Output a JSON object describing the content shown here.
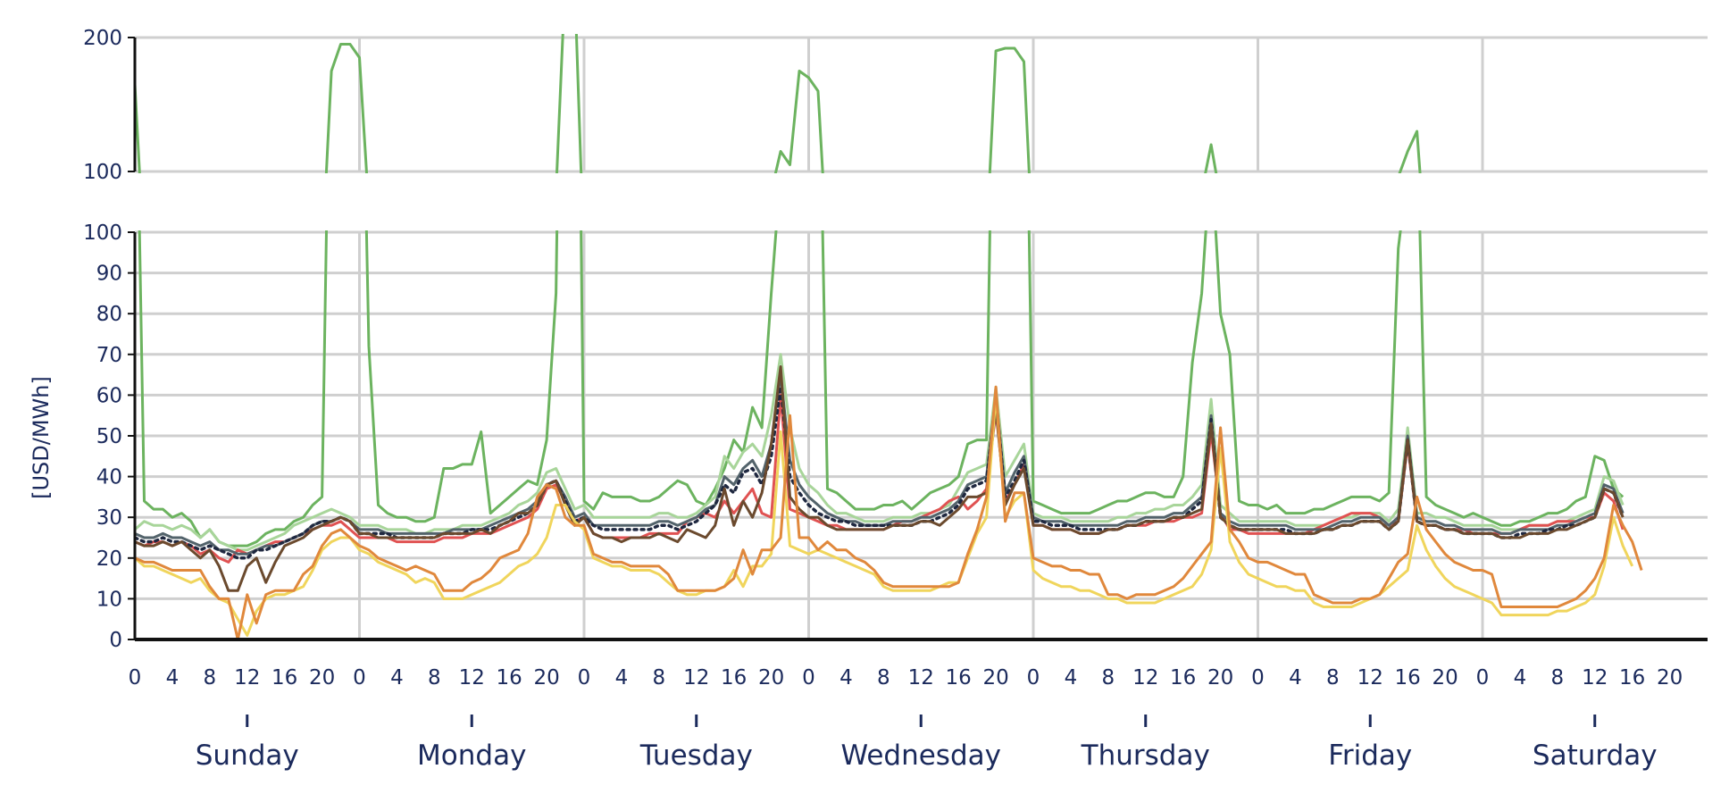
{
  "chart_data": {
    "type": "line",
    "ylabel": "[USD/MWh]",
    "broken_axis": true,
    "upper_panel": {
      "ylim": [
        100,
        200
      ],
      "ticks": [
        100,
        200
      ]
    },
    "lower_panel": {
      "ylim": [
        0,
        100
      ],
      "ticks": [
        0,
        10,
        20,
        30,
        40,
        50,
        60,
        70,
        80,
        90,
        100
      ]
    },
    "hour_ticks": [
      "0",
      "4",
      "8",
      "12",
      "16",
      "20"
    ],
    "days": [
      "Sunday",
      "Monday",
      "Tuesday",
      "Wednesday",
      "Thursday",
      "Friday",
      "Saturday"
    ],
    "grid": true,
    "x_unit": "hour of week (0-167)",
    "series": [
      {
        "color": "#6cb35f",
        "style": "solid",
        "values": [
          165,
          34,
          32,
          32,
          30,
          31,
          29,
          25,
          27,
          24,
          23,
          23,
          23,
          24,
          26,
          27,
          27,
          29,
          30,
          33,
          35,
          175,
          195,
          195,
          185,
          72,
          33,
          31,
          30,
          30,
          29,
          29,
          30,
          42,
          42,
          43,
          43,
          51,
          31,
          33,
          35,
          37,
          39,
          38,
          49,
          85,
          245,
          240,
          34,
          32,
          36,
          35,
          35,
          35,
          34,
          34,
          35,
          37,
          39,
          38,
          34,
          33,
          37,
          42,
          49,
          46,
          57,
          52,
          85,
          115,
          105,
          175,
          170,
          160,
          37,
          36,
          34,
          32,
          32,
          32,
          33,
          33,
          34,
          32,
          34,
          36,
          37,
          38,
          40,
          48,
          49,
          49,
          190,
          192,
          192,
          182,
          34,
          33,
          32,
          31,
          31,
          31,
          31,
          32,
          33,
          34,
          34,
          35,
          36,
          36,
          35,
          35,
          40,
          68,
          85,
          120,
          80,
          70,
          34,
          33,
          33,
          32,
          33,
          31,
          31,
          31,
          32,
          32,
          33,
          34,
          35,
          35,
          35,
          34,
          36,
          96,
          115,
          130,
          35,
          33,
          32,
          31,
          30,
          31,
          30,
          29,
          28,
          28,
          29,
          29,
          30,
          31,
          31,
          32,
          34,
          35,
          45,
          44,
          37,
          35
        ]
      },
      {
        "color": "#a8d59a",
        "style": "solid",
        "values": [
          27,
          29,
          28,
          28,
          27,
          28,
          27,
          25,
          27,
          24,
          23,
          22,
          22,
          23,
          24,
          25,
          26,
          28,
          29,
          30,
          31,
          32,
          31,
          30,
          28,
          28,
          28,
          27,
          27,
          27,
          26,
          26,
          27,
          27,
          27,
          28,
          28,
          28,
          29,
          30,
          31,
          33,
          34,
          36,
          41,
          42,
          37,
          32,
          33,
          30,
          30,
          30,
          30,
          30,
          30,
          30,
          31,
          31,
          30,
          30,
          31,
          33,
          35,
          45,
          42,
          46,
          48,
          45,
          55,
          70,
          52,
          42,
          38,
          36,
          33,
          31,
          31,
          30,
          29,
          29,
          29,
          30,
          30,
          30,
          31,
          31,
          32,
          33,
          37,
          41,
          42,
          43,
          62,
          40,
          44,
          48,
          31,
          30,
          30,
          30,
          29,
          29,
          29,
          29,
          29,
          30,
          30,
          31,
          31,
          32,
          32,
          33,
          33,
          35,
          38,
          59,
          33,
          31,
          29,
          29,
          29,
          29,
          29,
          29,
          28,
          28,
          28,
          28,
          29,
          30,
          30,
          31,
          31,
          31,
          29,
          32,
          52,
          31,
          31,
          30,
          30,
          29,
          28,
          28,
          28,
          28,
          27,
          27,
          27,
          28,
          28,
          28,
          29,
          29,
          30,
          31,
          32,
          40,
          39,
          33
        ]
      },
      {
        "color": "#e05252",
        "style": "solid",
        "values": [
          24,
          23,
          24,
          24,
          23,
          24,
          23,
          21,
          22,
          20,
          19,
          22,
          21,
          22,
          23,
          24,
          24,
          25,
          26,
          27,
          28,
          28,
          29,
          27,
          25,
          25,
          25,
          25,
          24,
          24,
          24,
          24,
          24,
          25,
          25,
          25,
          26,
          26,
          26,
          27,
          28,
          29,
          30,
          32,
          37,
          38,
          34,
          29,
          30,
          26,
          25,
          25,
          25,
          25,
          25,
          26,
          26,
          26,
          26,
          29,
          30,
          31,
          30,
          34,
          31,
          34,
          37,
          31,
          30,
          60,
          32,
          31,
          30,
          29,
          28,
          28,
          27,
          27,
          27,
          27,
          27,
          28,
          29,
          29,
          30,
          31,
          32,
          34,
          35,
          32,
          34,
          37,
          56,
          34,
          38,
          43,
          28,
          28,
          27,
          27,
          27,
          26,
          26,
          26,
          27,
          27,
          28,
          28,
          28,
          29,
          29,
          29,
          30,
          30,
          31,
          51,
          31,
          27,
          27,
          26,
          26,
          26,
          26,
          26,
          26,
          26,
          27,
          28,
          29,
          30,
          31,
          31,
          31,
          30,
          28,
          29,
          48,
          29,
          28,
          28,
          27,
          27,
          27,
          26,
          26,
          26,
          26,
          26,
          27,
          28,
          28,
          28,
          29,
          29,
          29,
          30,
          30,
          36,
          34,
          27
        ]
      },
      {
        "color": "#53636b",
        "style": "solid",
        "values": [
          26,
          25,
          25,
          26,
          25,
          25,
          24,
          23,
          24,
          22,
          22,
          21,
          21,
          22,
          23,
          23,
          24,
          25,
          26,
          28,
          29,
          29,
          30,
          29,
          27,
          27,
          27,
          26,
          26,
          26,
          26,
          26,
          26,
          26,
          27,
          27,
          27,
          27,
          28,
          29,
          30,
          31,
          32,
          34,
          38,
          39,
          35,
          30,
          31,
          28,
          28,
          28,
          28,
          28,
          28,
          28,
          29,
          29,
          28,
          29,
          30,
          32,
          33,
          40,
          38,
          42,
          44,
          40,
          48,
          65,
          44,
          38,
          35,
          33,
          31,
          30,
          29,
          29,
          28,
          28,
          28,
          29,
          29,
          29,
          30,
          30,
          31,
          32,
          34,
          38,
          39,
          40,
          60,
          36,
          41,
          45,
          30,
          29,
          29,
          29,
          28,
          28,
          28,
          28,
          28,
          28,
          29,
          29,
          30,
          30,
          30,
          31,
          31,
          33,
          35,
          55,
          31,
          29,
          28,
          28,
          28,
          28,
          28,
          28,
          27,
          27,
          27,
          27,
          28,
          29,
          29,
          30,
          30,
          30,
          28,
          30,
          50,
          30,
          29,
          29,
          28,
          28,
          27,
          27,
          27,
          27,
          26,
          26,
          27,
          27,
          27,
          27,
          28,
          28,
          29,
          30,
          31,
          38,
          37,
          31
        ]
      },
      {
        "color": "#1f2840",
        "style": "dotted",
        "values": [
          25,
          24,
          24,
          25,
          24,
          24,
          23,
          22,
          23,
          22,
          21,
          20,
          20,
          22,
          22,
          23,
          24,
          25,
          26,
          28,
          29,
          29,
          30,
          29,
          26,
          26,
          26,
          26,
          25,
          25,
          25,
          25,
          25,
          26,
          26,
          26,
          27,
          27,
          27,
          28,
          29,
          30,
          31,
          33,
          38,
          39,
          34,
          29,
          30,
          28,
          27,
          27,
          27,
          27,
          27,
          27,
          28,
          28,
          27,
          28,
          29,
          31,
          33,
          38,
          36,
          41,
          42,
          38,
          45,
          62,
          40,
          36,
          33,
          31,
          30,
          29,
          29,
          28,
          28,
          28,
          28,
          28,
          28,
          28,
          29,
          29,
          30,
          31,
          33,
          37,
          38,
          39,
          59,
          35,
          39,
          44,
          29,
          29,
          28,
          28,
          28,
          27,
          27,
          27,
          27,
          27,
          28,
          28,
          29,
          29,
          29,
          30,
          30,
          32,
          34,
          54,
          30,
          28,
          27,
          27,
          27,
          27,
          27,
          27,
          26,
          26,
          26,
          27,
          27,
          28,
          28,
          29,
          29,
          29,
          27,
          29,
          49,
          29,
          28,
          28,
          27,
          27,
          26,
          26,
          26,
          26,
          25,
          25,
          26,
          26,
          26,
          27,
          27,
          28,
          28,
          29,
          30,
          37,
          36,
          30
        ]
      },
      {
        "color": "#6b4a2e",
        "style": "solid",
        "values": [
          24,
          23,
          23,
          24,
          23,
          24,
          22,
          20,
          22,
          18,
          12,
          12,
          18,
          20,
          14,
          19,
          23,
          24,
          25,
          27,
          28,
          29,
          30,
          29,
          26,
          26,
          25,
          25,
          25,
          25,
          25,
          25,
          25,
          26,
          26,
          26,
          26,
          27,
          26,
          28,
          29,
          31,
          31,
          33,
          38,
          39,
          33,
          28,
          30,
          26,
          25,
          25,
          24,
          25,
          25,
          25,
          26,
          25,
          24,
          27,
          26,
          25,
          28,
          37,
          28,
          34,
          30,
          36,
          48,
          67,
          35,
          32,
          30,
          30,
          28,
          27,
          27,
          27,
          27,
          27,
          27,
          28,
          28,
          28,
          29,
          29,
          28,
          30,
          32,
          35,
          35,
          36,
          57,
          33,
          38,
          42,
          28,
          28,
          27,
          27,
          27,
          26,
          26,
          26,
          27,
          27,
          28,
          28,
          29,
          29,
          29,
          30,
          30,
          31,
          32,
          53,
          30,
          28,
          27,
          27,
          27,
          27,
          27,
          26,
          26,
          26,
          26,
          27,
          27,
          28,
          28,
          29,
          29,
          29,
          27,
          29,
          49,
          29,
          28,
          28,
          27,
          27,
          26,
          26,
          26,
          26,
          25,
          25,
          25,
          26,
          26,
          26,
          27,
          27,
          28,
          29,
          30,
          37,
          36,
          30
        ]
      },
      {
        "color": "#f0d55c",
        "style": "solid",
        "values": [
          20,
          18,
          18,
          17,
          16,
          15,
          14,
          15,
          12,
          10,
          9,
          5,
          1,
          7,
          10,
          11,
          11,
          12,
          13,
          17,
          22,
          24,
          25,
          25,
          22,
          21,
          19,
          18,
          17,
          16,
          14,
          15,
          14,
          10,
          10,
          10,
          11,
          12,
          13,
          14,
          16,
          18,
          19,
          21,
          25,
          33,
          33,
          29,
          27,
          20,
          19,
          18,
          18,
          17,
          17,
          17,
          16,
          14,
          12,
          11,
          11,
          12,
          12,
          13,
          17,
          13,
          18,
          18,
          21,
          51,
          23,
          22,
          21,
          22,
          21,
          20,
          19,
          18,
          17,
          16,
          13,
          12,
          12,
          12,
          12,
          12,
          13,
          14,
          14,
          20,
          26,
          30,
          60,
          30,
          34,
          36,
          17,
          15,
          14,
          13,
          13,
          12,
          12,
          11,
          10,
          10,
          9,
          9,
          9,
          9,
          10,
          11,
          12,
          13,
          16,
          22,
          47,
          24,
          19,
          16,
          15,
          14,
          13,
          13,
          12,
          12,
          9,
          8,
          8,
          8,
          8,
          9,
          10,
          11,
          13,
          15,
          17,
          28,
          22,
          18,
          15,
          13,
          12,
          11,
          10,
          9,
          6,
          6,
          6,
          6,
          6,
          6,
          7,
          7,
          8,
          9,
          11,
          18,
          30,
          23,
          18
        ]
      },
      {
        "color": "#e0883c",
        "style": "solid",
        "values": [
          20,
          19,
          19,
          18,
          17,
          17,
          17,
          17,
          13,
          10,
          10,
          0,
          11,
          4,
          11,
          12,
          12,
          12,
          16,
          18,
          23,
          26,
          27,
          25,
          23,
          22,
          20,
          19,
          18,
          17,
          18,
          17,
          16,
          12,
          12,
          12,
          14,
          15,
          17,
          20,
          21,
          22,
          26,
          35,
          38,
          37,
          30,
          28,
          28,
          21,
          20,
          19,
          19,
          18,
          18,
          18,
          18,
          16,
          12,
          12,
          12,
          12,
          12,
          13,
          15,
          22,
          16,
          22,
          22,
          25,
          55,
          25,
          25,
          22,
          24,
          22,
          22,
          20,
          19,
          17,
          14,
          13,
          13,
          13,
          13,
          13,
          13,
          13,
          14,
          21,
          27,
          35,
          62,
          29,
          36,
          36,
          20,
          19,
          18,
          18,
          17,
          17,
          16,
          16,
          11,
          11,
          10,
          11,
          11,
          11,
          12,
          13,
          15,
          18,
          21,
          24,
          52,
          27,
          24,
          20,
          19,
          19,
          18,
          17,
          16,
          16,
          11,
          10,
          9,
          9,
          9,
          10,
          10,
          11,
          15,
          19,
          21,
          35,
          27,
          24,
          21,
          19,
          18,
          17,
          17,
          16,
          8,
          8,
          8,
          8,
          8,
          8,
          8,
          9,
          10,
          12,
          15,
          20,
          33,
          28,
          24,
          17
        ]
      }
    ]
  }
}
